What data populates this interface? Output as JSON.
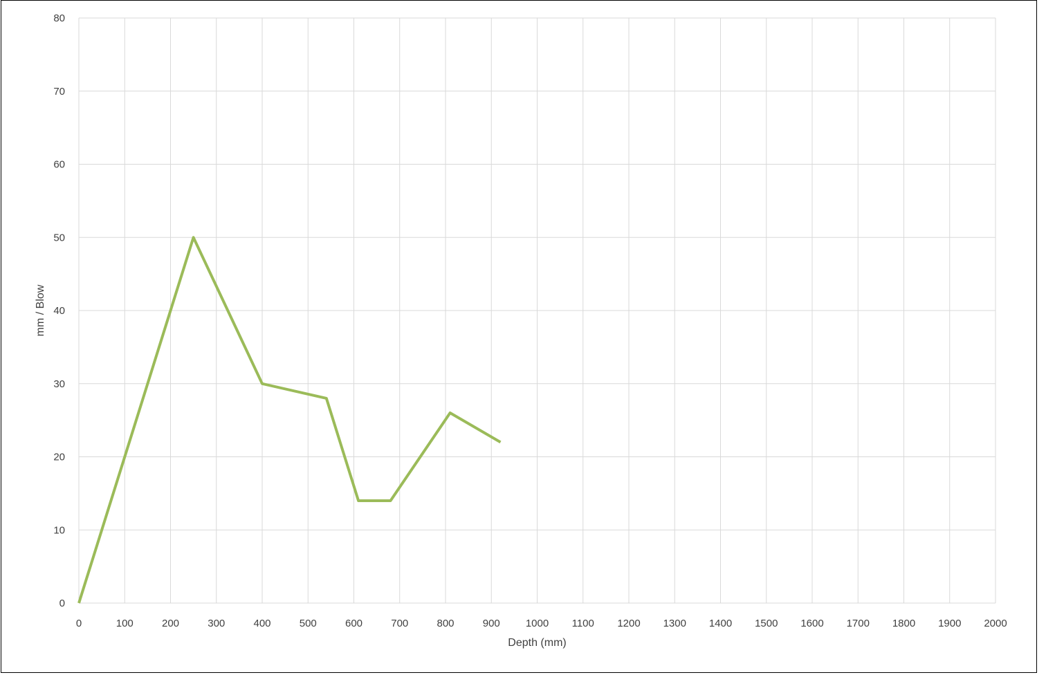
{
  "chart_data": {
    "type": "line",
    "title": "",
    "xlabel": "Depth (mm)",
    "ylabel": "mm / Blow",
    "xlim": [
      0,
      2000
    ],
    "ylim": [
      0,
      80
    ],
    "xticks": [
      0,
      100,
      200,
      300,
      400,
      500,
      600,
      700,
      800,
      900,
      1000,
      1100,
      1200,
      1300,
      1400,
      1500,
      1600,
      1700,
      1800,
      1900,
      2000
    ],
    "yticks": [
      0,
      10,
      20,
      30,
      40,
      50,
      60,
      70,
      80
    ],
    "grid": true,
    "series": [
      {
        "x": [
          0,
          100,
          250,
          400,
          540,
          610,
          680,
          810,
          920
        ],
        "y": [
          0,
          20,
          50,
          30,
          28,
          14,
          14,
          26,
          22
        ],
        "color": "#9BBB59"
      }
    ]
  }
}
